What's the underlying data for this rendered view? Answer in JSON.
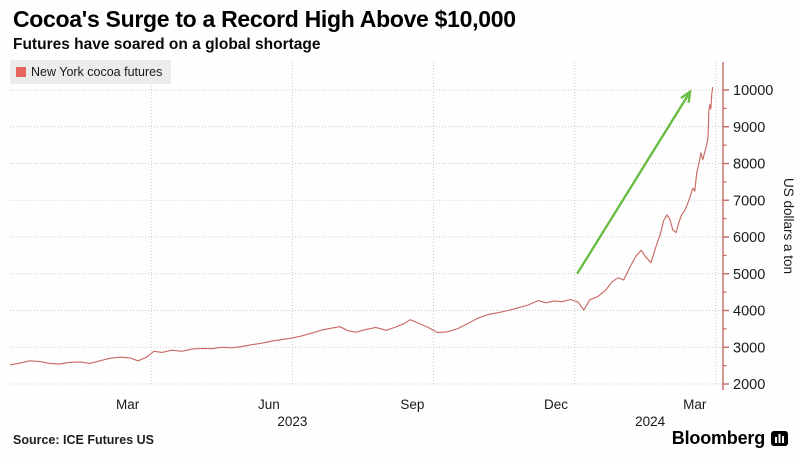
{
  "header": {
    "title": "Cocoa's Surge to a Record High Above $10,000",
    "subtitle": "Futures have soared on a global shortage"
  },
  "legend": {
    "label": "New York cocoa futures",
    "swatch_color": "#e8655f"
  },
  "footer": {
    "source": "Source: ICE Futures US",
    "brand": "Bloomberg"
  },
  "colors": {
    "line": "#c96b64",
    "axis": "#c96b64",
    "grid": "#c9c9c9",
    "arrow": "#6abc45",
    "legend_bg": "#ececec",
    "tick_text": "#1a1a1a"
  },
  "chart_data": {
    "type": "line",
    "title": "Cocoa's Surge to a Record High Above $10,000",
    "subtitle": "Futures have soared on a global shortage",
    "ylabel": "US dollars a ton",
    "xlabel": "",
    "ylim": [
      2000,
      10000
    ],
    "y_tick_step": 1000,
    "grid": "dotted",
    "legend_position": "top-left",
    "y_ticks": [
      2000,
      3000,
      4000,
      5000,
      6000,
      7000,
      8000,
      9000,
      10000
    ],
    "x_ticks": [
      {
        "label": "Mar",
        "t": 2.5
      },
      {
        "label": "Jun",
        "t": 5.5
      },
      {
        "label": "Sep",
        "t": 8.55
      },
      {
        "label": "Dec",
        "t": 11.6
      },
      {
        "label": "Mar",
        "t": 14.55
      }
    ],
    "year_labels": [
      {
        "label": "2023",
        "t": 6.0
      },
      {
        "label": "2024",
        "t": 13.6
      }
    ],
    "grid_t": [
      3,
      6,
      9,
      12,
      15
    ],
    "x_unit": "months since 2023-01-01",
    "annotation_arrow": {
      "from": [
        12.05,
        5000
      ],
      "to": [
        14.45,
        9950
      ]
    },
    "series": [
      {
        "name": "New York cocoa futures",
        "points": [
          [
            0.0,
            2520
          ],
          [
            0.21,
            2570
          ],
          [
            0.42,
            2630
          ],
          [
            0.64,
            2610
          ],
          [
            0.85,
            2560
          ],
          [
            1.06,
            2545
          ],
          [
            1.27,
            2590
          ],
          [
            1.49,
            2600
          ],
          [
            1.7,
            2560
          ],
          [
            1.91,
            2630
          ],
          [
            2.12,
            2700
          ],
          [
            2.34,
            2730
          ],
          [
            2.55,
            2710
          ],
          [
            2.72,
            2630
          ],
          [
            2.89,
            2720
          ],
          [
            3.06,
            2890
          ],
          [
            3.23,
            2860
          ],
          [
            3.44,
            2920
          ],
          [
            3.65,
            2890
          ],
          [
            3.87,
            2950
          ],
          [
            4.08,
            2970
          ],
          [
            4.29,
            2960
          ],
          [
            4.5,
            3000
          ],
          [
            4.72,
            2985
          ],
          [
            4.93,
            3020
          ],
          [
            5.14,
            3070
          ],
          [
            5.35,
            3110
          ],
          [
            5.57,
            3170
          ],
          [
            5.78,
            3210
          ],
          [
            5.99,
            3250
          ],
          [
            6.2,
            3310
          ],
          [
            6.42,
            3390
          ],
          [
            6.63,
            3470
          ],
          [
            6.84,
            3520
          ],
          [
            7.01,
            3560
          ],
          [
            7.18,
            3450
          ],
          [
            7.35,
            3410
          ],
          [
            7.56,
            3480
          ],
          [
            7.77,
            3540
          ],
          [
            7.99,
            3460
          ],
          [
            8.2,
            3550
          ],
          [
            8.37,
            3640
          ],
          [
            8.5,
            3750
          ],
          [
            8.67,
            3660
          ],
          [
            8.88,
            3540
          ],
          [
            9.09,
            3400
          ],
          [
            9.3,
            3420
          ],
          [
            9.52,
            3510
          ],
          [
            9.73,
            3650
          ],
          [
            9.94,
            3790
          ],
          [
            10.16,
            3890
          ],
          [
            10.37,
            3940
          ],
          [
            10.58,
            4000
          ],
          [
            10.79,
            4070
          ],
          [
            11.01,
            4150
          ],
          [
            11.22,
            4270
          ],
          [
            11.39,
            4210
          ],
          [
            11.56,
            4260
          ],
          [
            11.73,
            4240
          ],
          [
            11.9,
            4300
          ],
          [
            12.07,
            4230
          ],
          [
            12.19,
            4010
          ],
          [
            12.32,
            4290
          ],
          [
            12.49,
            4380
          ],
          [
            12.66,
            4560
          ],
          [
            12.79,
            4780
          ],
          [
            12.92,
            4890
          ],
          [
            13.04,
            4830
          ],
          [
            13.17,
            5180
          ],
          [
            13.3,
            5480
          ],
          [
            13.41,
            5640
          ],
          [
            13.51,
            5450
          ],
          [
            13.62,
            5300
          ],
          [
            13.72,
            5720
          ],
          [
            13.81,
            6050
          ],
          [
            13.89,
            6450
          ],
          [
            13.96,
            6600
          ],
          [
            14.02,
            6480
          ],
          [
            14.08,
            6200
          ],
          [
            14.15,
            6120
          ],
          [
            14.21,
            6390
          ],
          [
            14.27,
            6600
          ],
          [
            14.34,
            6730
          ],
          [
            14.4,
            6920
          ],
          [
            14.46,
            7140
          ],
          [
            14.51,
            7330
          ],
          [
            14.55,
            7250
          ],
          [
            14.59,
            7740
          ],
          [
            14.63,
            7960
          ],
          [
            14.68,
            8290
          ],
          [
            14.72,
            8100
          ],
          [
            14.76,
            8310
          ],
          [
            14.8,
            8500
          ],
          [
            14.83,
            8700
          ],
          [
            14.85,
            9450
          ],
          [
            14.87,
            9600
          ],
          [
            14.89,
            9480
          ],
          [
            14.91,
            9900
          ],
          [
            14.93,
            10080
          ]
        ]
      }
    ]
  }
}
